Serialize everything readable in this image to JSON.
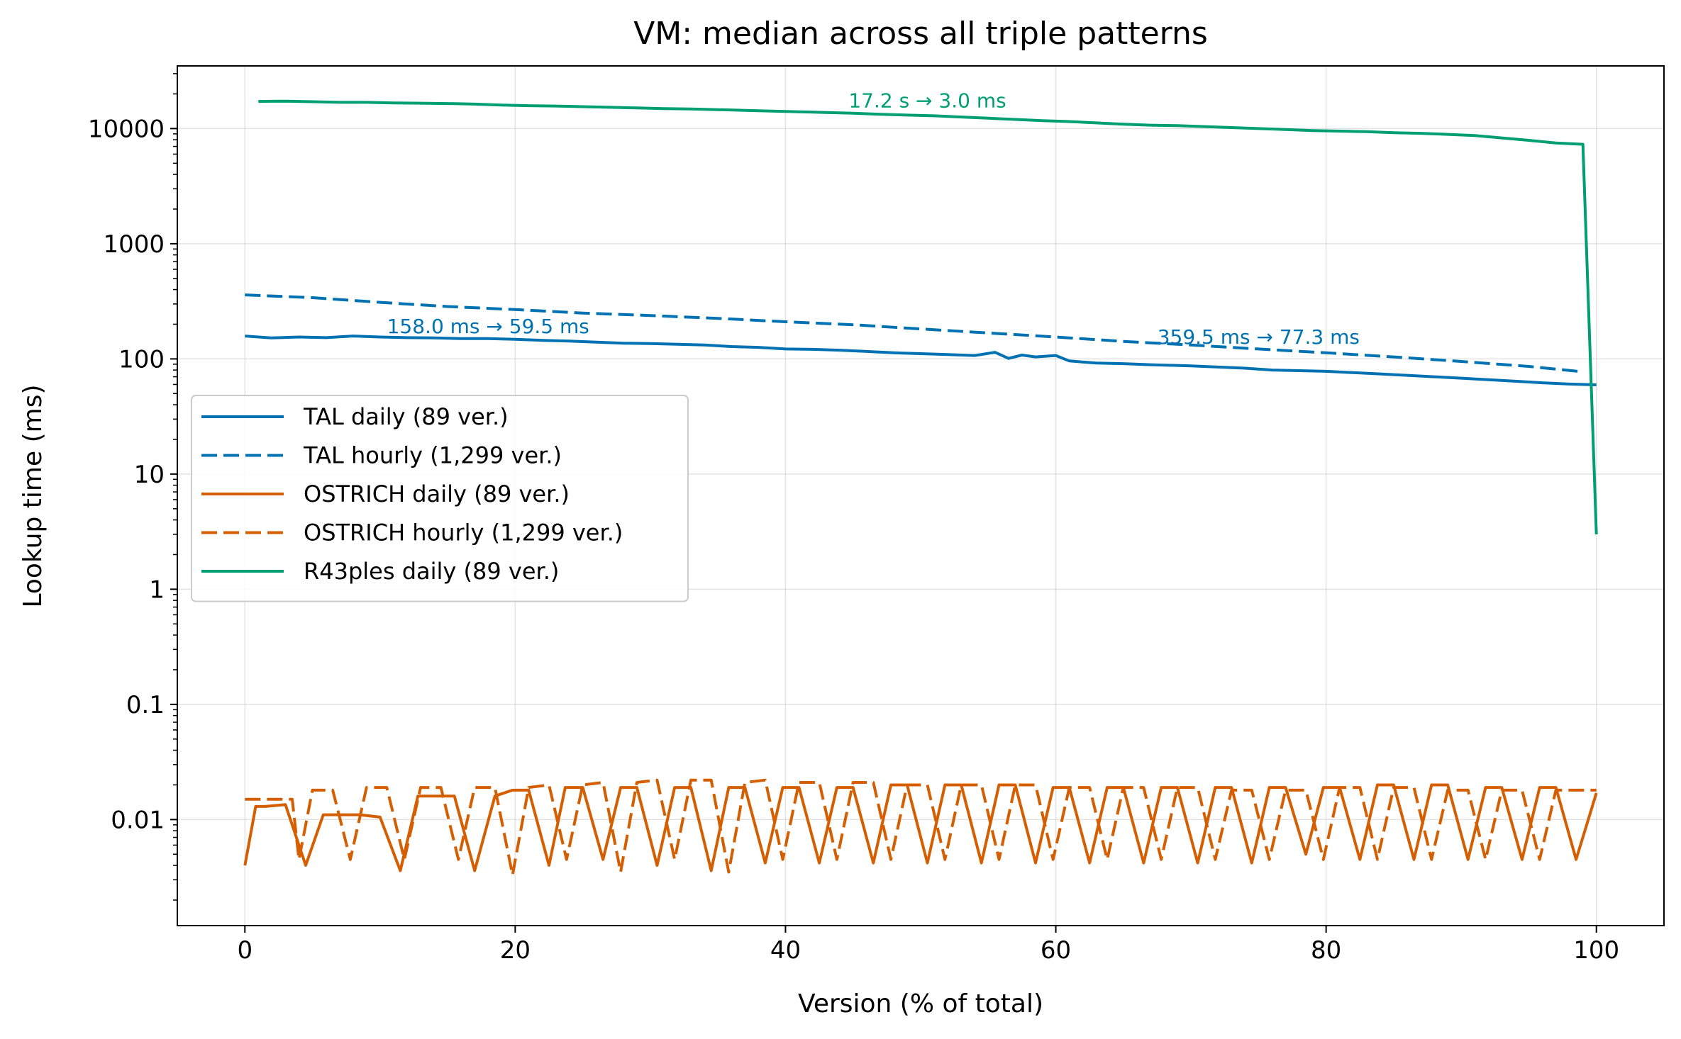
{
  "chart_data": {
    "type": "line",
    "title": "VM: median across all triple patterns",
    "xlabel": "Version (% of total)",
    "ylabel": "Lookup time (ms)",
    "xlim": [
      -5,
      105
    ],
    "ylim": [
      0.0012,
      35000
    ],
    "yscale": "log",
    "grid": true,
    "legend_position": "center-left",
    "xticks": [
      0,
      20,
      40,
      60,
      80,
      100
    ],
    "xtick_labels": [
      "0",
      "20",
      "40",
      "60",
      "80",
      "100"
    ],
    "yticks": [
      0.01,
      0.1,
      1,
      10,
      100,
      1000,
      10000
    ],
    "ytick_labels": [
      "0.01",
      "0.1",
      "1",
      "10",
      "100",
      "1000",
      "10000"
    ],
    "series": [
      {
        "name": "TAL daily (89 ver.)",
        "color": "#0072B2",
        "style": "solid",
        "x": [
          0,
          2,
          4,
          6,
          8,
          10,
          12,
          14,
          16,
          18,
          20,
          22,
          24,
          26,
          28,
          30,
          32,
          34,
          36,
          38,
          40,
          42,
          44,
          46,
          48,
          50,
          52,
          54,
          55.5,
          56.5,
          57.5,
          58.5,
          60,
          61,
          63,
          65,
          67,
          70,
          72,
          74,
          76,
          78,
          80,
          82,
          84,
          86,
          88,
          90,
          92,
          94,
          96,
          98,
          100
        ],
        "values": [
          158,
          152,
          155,
          153,
          158,
          155,
          153,
          152,
          150,
          150,
          148,
          145,
          143,
          140,
          137,
          136,
          134,
          132,
          128,
          126,
          122,
          121,
          119,
          116,
          113,
          111,
          109,
          107,
          114,
          101,
          108,
          104,
          107,
          96,
          92,
          91,
          89,
          87,
          85,
          83,
          80,
          79,
          78,
          76,
          74,
          72,
          70,
          68,
          66,
          64,
          62,
          60.5,
          59.5
        ]
      },
      {
        "name": "TAL hourly (1,299 ver.)",
        "color": "#0072B2",
        "style": "dashed",
        "x": [
          0,
          5,
          10,
          15,
          20,
          25,
          30,
          35,
          40,
          45,
          50,
          55,
          60,
          65,
          70,
          75,
          80,
          85,
          90,
          95,
          99
        ],
        "values": [
          359.5,
          340,
          310,
          285,
          268,
          250,
          238,
          225,
          210,
          198,
          182,
          168,
          155,
          142,
          132,
          122,
          113,
          104,
          95,
          86,
          77.3
        ]
      },
      {
        "name": "OSTRICH daily (89 ver.)",
        "color": "#D55E00",
        "style": "solid",
        "x": [
          0,
          0.8,
          1.5,
          3,
          4.5,
          5.8,
          7,
          8.5,
          10,
          11.5,
          12.8,
          14,
          15.5,
          17,
          18.5,
          19.8,
          21,
          22.5,
          23.7,
          25,
          26.5,
          27.8,
          29,
          30.5,
          31.8,
          33,
          34.5,
          35.8,
          37,
          38.5,
          39.8,
          41,
          42.5,
          43.8,
          45,
          46.5,
          47.8,
          49,
          50.5,
          51.8,
          53,
          54.5,
          55.8,
          57,
          58.5,
          59.8,
          61,
          62.5,
          63.8,
          65,
          66.5,
          67.8,
          69,
          70.5,
          71.8,
          73,
          74.5,
          75.8,
          77,
          78.5,
          79.8,
          81,
          82.5,
          83.8,
          85,
          86.5,
          87.8,
          89,
          90.5,
          91.8,
          93,
          94.5,
          95.8,
          97,
          98.5,
          100
        ],
        "values": [
          0.004,
          0.013,
          0.013,
          0.0135,
          0.004,
          0.011,
          0.011,
          0.011,
          0.0105,
          0.0036,
          0.016,
          0.016,
          0.016,
          0.0036,
          0.016,
          0.018,
          0.018,
          0.004,
          0.019,
          0.019,
          0.0045,
          0.019,
          0.019,
          0.004,
          0.019,
          0.019,
          0.0036,
          0.019,
          0.019,
          0.0042,
          0.019,
          0.019,
          0.0042,
          0.019,
          0.019,
          0.0042,
          0.02,
          0.02,
          0.0042,
          0.02,
          0.02,
          0.0042,
          0.02,
          0.02,
          0.0042,
          0.019,
          0.019,
          0.0042,
          0.019,
          0.019,
          0.0042,
          0.019,
          0.019,
          0.0042,
          0.019,
          0.019,
          0.0042,
          0.019,
          0.019,
          0.005,
          0.019,
          0.019,
          0.0045,
          0.02,
          0.02,
          0.0045,
          0.02,
          0.02,
          0.0045,
          0.019,
          0.019,
          0.0045,
          0.019,
          0.019,
          0.0045,
          0.017
        ]
      },
      {
        "name": "OSTRICH hourly (1,299 ver.)",
        "color": "#D55E00",
        "style": "dashed",
        "x": [
          0,
          1,
          2,
          3.5,
          4,
          5,
          6.5,
          7.8,
          9,
          10.5,
          11.8,
          13,
          14.5,
          15.8,
          17,
          18.5,
          19.8,
          21,
          22.5,
          23.8,
          25,
          26.5,
          27.8,
          29,
          30.5,
          31.8,
          33,
          34.5,
          35.8,
          37,
          38.5,
          39.8,
          41,
          42.5,
          43.8,
          45,
          46.5,
          47.8,
          49,
          50.5,
          51.8,
          53,
          54.5,
          55.8,
          57,
          58.5,
          59.8,
          61,
          62.5,
          63.8,
          65,
          66.5,
          67.8,
          69,
          70.5,
          71.8,
          73,
          74.5,
          75.8,
          77,
          78.5,
          79.8,
          81,
          82.5,
          83.8,
          85,
          86.5,
          87.8,
          89,
          90.5,
          91.8,
          93,
          94.5,
          95.8,
          97,
          98.5,
          100
        ],
        "values": [
          0.015,
          0.015,
          0.015,
          0.015,
          0.0045,
          0.018,
          0.018,
          0.0045,
          0.019,
          0.019,
          0.0045,
          0.019,
          0.019,
          0.0045,
          0.019,
          0.019,
          0.0033,
          0.019,
          0.02,
          0.0045,
          0.02,
          0.021,
          0.0035,
          0.021,
          0.022,
          0.0045,
          0.022,
          0.022,
          0.0035,
          0.021,
          0.022,
          0.0045,
          0.021,
          0.021,
          0.0045,
          0.021,
          0.021,
          0.0045,
          0.02,
          0.02,
          0.0045,
          0.02,
          0.02,
          0.0045,
          0.02,
          0.02,
          0.0045,
          0.019,
          0.019,
          0.0045,
          0.019,
          0.019,
          0.0045,
          0.019,
          0.019,
          0.0045,
          0.018,
          0.018,
          0.0045,
          0.018,
          0.018,
          0.0045,
          0.019,
          0.019,
          0.0045,
          0.019,
          0.019,
          0.0045,
          0.018,
          0.018,
          0.0045,
          0.018,
          0.018,
          0.0045,
          0.018,
          0.018,
          0.018
        ]
      },
      {
        "name": "R43ples daily (89 ver.)",
        "color": "#009E73",
        "style": "solid",
        "x": [
          1,
          3,
          5,
          7,
          9,
          11,
          13,
          15,
          17,
          19,
          21,
          23,
          25,
          27,
          29,
          31,
          33,
          35,
          37,
          39,
          41,
          43,
          45,
          47,
          49,
          51,
          53,
          55,
          57,
          59,
          61,
          63,
          65,
          67,
          69,
          71,
          73,
          75,
          77,
          79,
          81,
          83,
          85,
          87,
          89,
          91,
          93,
          95,
          97,
          99,
          100
        ],
        "values": [
          17200,
          17300,
          17100,
          16900,
          16900,
          16700,
          16600,
          16500,
          16300,
          16000,
          15800,
          15700,
          15500,
          15300,
          15100,
          14900,
          14800,
          14600,
          14400,
          14200,
          14000,
          13800,
          13600,
          13300,
          13100,
          12900,
          12600,
          12300,
          12000,
          11700,
          11500,
          11200,
          10900,
          10700,
          10600,
          10400,
          10200,
          10000,
          9800,
          9600,
          9500,
          9400,
          9200,
          9100,
          8900,
          8700,
          8300,
          7900,
          7500,
          7300,
          3.0
        ]
      }
    ],
    "annotations": [
      {
        "text": "17.2 s → 3.0 ms",
        "x": 50.5,
        "y": 15300,
        "color": "#009E73"
      },
      {
        "text": "158.0 ms → 59.5 ms",
        "x": 18,
        "y": 168,
        "color": "#0072B2"
      },
      {
        "text": "359.5 ms → 77.3 ms",
        "x": 75,
        "y": 135,
        "color": "#0072B2"
      }
    ]
  }
}
